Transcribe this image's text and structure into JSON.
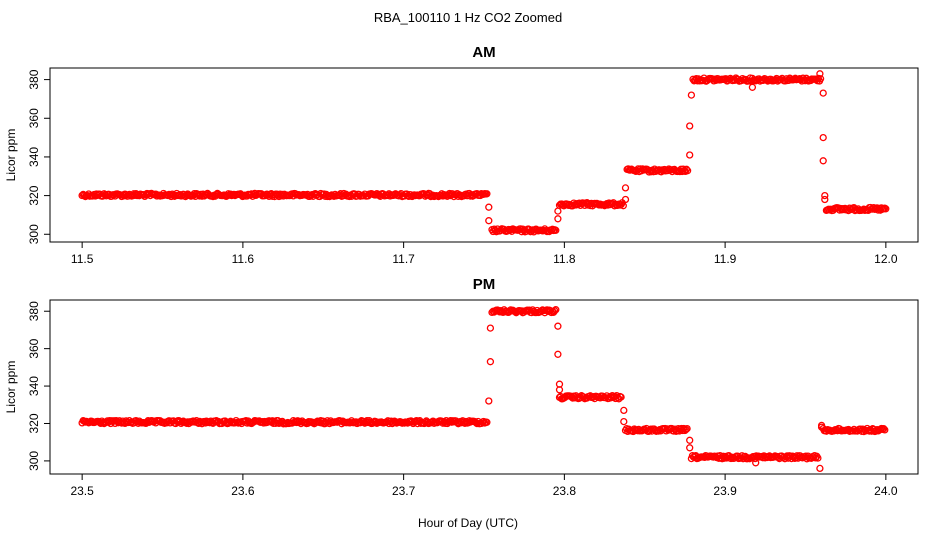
{
  "figure": {
    "title": "RBA_100110  1 Hz CO2 Zoomed",
    "xlabel": "Hour of Day (UTC)"
  },
  "colors": {
    "points": "#ff0000",
    "axes": "#000000",
    "background": "#ffffff"
  },
  "chart_data": [
    {
      "type": "scatter",
      "title": "AM",
      "ylabel": "Licor ppm",
      "xlim": [
        11.48,
        12.02
      ],
      "ylim": [
        296.0,
        386.0
      ],
      "xticks": [
        "11.5",
        "11.6",
        "11.7",
        "11.8",
        "11.9",
        "12.0"
      ],
      "xtick_values": [
        11.5,
        11.6,
        11.7,
        11.8,
        11.9,
        12.0
      ],
      "yticks": [
        "300",
        "320",
        "340",
        "360",
        "380"
      ],
      "ytick_values": [
        300,
        320,
        340,
        360,
        380
      ],
      "levels": [
        {
          "x_start": 11.5,
          "x_end": 11.752,
          "y": 320.3
        },
        {
          "x_start": 11.755,
          "x_end": 11.795,
          "y": 302.0
        },
        {
          "x_start": 11.797,
          "x_end": 11.837,
          "y": 315.5
        },
        {
          "x_start": 11.839,
          "x_end": 11.877,
          "y": 333.0
        },
        {
          "x_start": 11.88,
          "x_end": 11.96,
          "y": 380.0
        },
        {
          "x_start": 11.963,
          "x_end": 12.0,
          "y": 313.0
        }
      ],
      "outliers": [
        {
          "x": 11.753,
          "y": 314
        },
        {
          "x": 11.753,
          "y": 307
        },
        {
          "x": 11.796,
          "y": 308
        },
        {
          "x": 11.796,
          "y": 312
        },
        {
          "x": 11.838,
          "y": 324
        },
        {
          "x": 11.838,
          "y": 318
        },
        {
          "x": 11.878,
          "y": 341
        },
        {
          "x": 11.878,
          "y": 356
        },
        {
          "x": 11.879,
          "y": 372
        },
        {
          "x": 11.917,
          "y": 376
        },
        {
          "x": 11.959,
          "y": 383
        },
        {
          "x": 11.961,
          "y": 373
        },
        {
          "x": 11.961,
          "y": 350
        },
        {
          "x": 11.961,
          "y": 338
        },
        {
          "x": 11.962,
          "y": 320
        },
        {
          "x": 11.962,
          "y": 318
        }
      ]
    },
    {
      "type": "scatter",
      "title": "PM",
      "ylabel": "Licor ppm",
      "xlim": [
        23.48,
        24.02
      ],
      "ylim": [
        293.0,
        386.0
      ],
      "xticks": [
        "23.5",
        "23.6",
        "23.7",
        "23.8",
        "23.9",
        "24.0"
      ],
      "xtick_values": [
        23.5,
        23.6,
        23.7,
        23.8,
        23.9,
        24.0
      ],
      "yticks": [
        "300",
        "320",
        "340",
        "360",
        "380"
      ],
      "ytick_values": [
        300,
        320,
        340,
        360,
        380
      ],
      "levels": [
        {
          "x_start": 23.5,
          "x_end": 23.752,
          "y": 320.7
        },
        {
          "x_start": 23.755,
          "x_end": 23.795,
          "y": 380.0
        },
        {
          "x_start": 23.797,
          "x_end": 23.836,
          "y": 334.0
        },
        {
          "x_start": 23.838,
          "x_end": 23.877,
          "y": 316.5
        },
        {
          "x_start": 23.879,
          "x_end": 23.958,
          "y": 302.0
        },
        {
          "x_start": 23.961,
          "x_end": 24.0,
          "y": 316.5
        }
      ],
      "outliers": [
        {
          "x": 23.753,
          "y": 332
        },
        {
          "x": 23.754,
          "y": 353
        },
        {
          "x": 23.754,
          "y": 371
        },
        {
          "x": 23.796,
          "y": 372
        },
        {
          "x": 23.796,
          "y": 357
        },
        {
          "x": 23.797,
          "y": 341
        },
        {
          "x": 23.797,
          "y": 338
        },
        {
          "x": 23.837,
          "y": 327
        },
        {
          "x": 23.837,
          "y": 321
        },
        {
          "x": 23.878,
          "y": 311
        },
        {
          "x": 23.878,
          "y": 307
        },
        {
          "x": 23.919,
          "y": 299
        },
        {
          "x": 23.959,
          "y": 296
        },
        {
          "x": 23.96,
          "y": 318
        },
        {
          "x": 23.96,
          "y": 319
        }
      ]
    }
  ]
}
